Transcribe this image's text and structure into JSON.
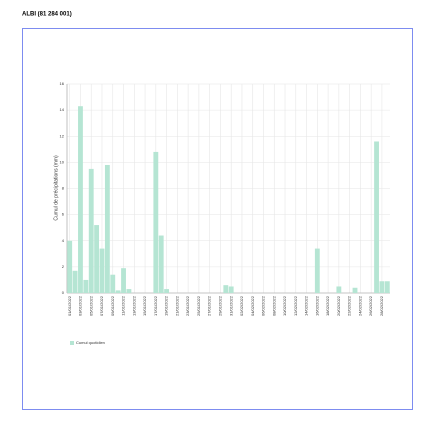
{
  "page_title": "ALBI (81 284 001)",
  "chart_data": {
    "type": "bar",
    "ylabel": "Cumul de précipitations (mm)",
    "categories": [
      "01/01/2022",
      null,
      "03/01/2022",
      null,
      "05/01/2022",
      null,
      "07/01/2022",
      null,
      "09/01/2022",
      null,
      "11/01/2022",
      null,
      "13/01/2022",
      null,
      "15/01/2022",
      null,
      "17/01/2022",
      null,
      "19/01/2022",
      null,
      "21/01/2022",
      null,
      "23/01/2022",
      null,
      "25/01/2022",
      null,
      "27/01/2022",
      null,
      "29/01/2022",
      null,
      "31/01/2022",
      null,
      "02/02/2022",
      null,
      "04/02/2022",
      null,
      "06/02/2022",
      null,
      "08/02/2022",
      null,
      "10/02/2022",
      null,
      "12/02/2022",
      null,
      "14/02/2022",
      null,
      "16/02/2022",
      null,
      "18/02/2022",
      null,
      "20/02/2022",
      null,
      "22/02/2022",
      null,
      "24/02/2022",
      null,
      "26/02/2022",
      null,
      "28/02/2022",
      null
    ],
    "series": [
      {
        "name": "Cumul quotidien",
        "color": "#b5e5d3",
        "values": [
          4.0,
          1.7,
          14.3,
          1.0,
          9.5,
          5.2,
          3.4,
          9.8,
          1.4,
          0.2,
          1.9,
          0.3,
          0,
          0,
          0,
          0,
          10.8,
          4.4,
          0.3,
          0,
          0,
          0,
          0,
          0,
          0,
          0,
          0,
          0,
          0,
          0.6,
          0.5,
          0,
          0,
          0,
          0,
          0,
          0,
          0,
          0,
          0,
          0,
          0,
          0,
          0,
          0,
          0,
          3.4,
          0,
          0,
          0,
          0.5,
          0,
          0,
          0.4,
          0,
          0,
          0,
          11.6,
          0.9,
          0.9
        ]
      }
    ],
    "ylim": [
      0,
      16
    ],
    "yticks": [
      0,
      2,
      4,
      6,
      8,
      10,
      12,
      14,
      16
    ],
    "grid": true
  }
}
